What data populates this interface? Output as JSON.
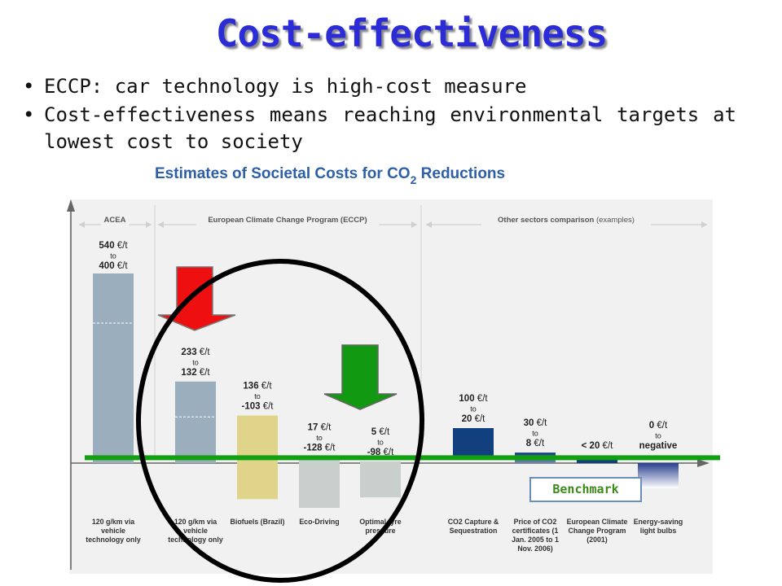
{
  "slide": {
    "title": "Cost-effectiveness",
    "bullets": [
      "ECCP: car technology is high-cost measure",
      "Cost-effectiveness means reaching environmental targets at lowest cost to society"
    ]
  },
  "colors": {
    "title": "#2b2bd8",
    "bar_acea": "#9aaebe",
    "bar_eccp_gray": "#c9cfcc",
    "bar_biofuels": "#e0d48a",
    "bar_other_blue": "#123f7d",
    "benchmark_line": "#10a010",
    "red_arrow": "#ee1010",
    "green_arrow": "#119911",
    "benchmark_label": "#3d8a1a"
  },
  "annotations": {
    "benchmark_label": "Benchmark"
  },
  "chart_data": {
    "type": "bar",
    "title": "Estimates of Societal Costs for CO2 Reductions",
    "unit": "€/t",
    "sections": [
      {
        "label": "ACEA",
        "note": ""
      },
      {
        "label": "European Climate Change Program (ECCP)",
        "note": ""
      },
      {
        "label": "Other sectors comparison",
        "note": "(examples)"
      }
    ],
    "categories": [
      "120 g/km via vehicle technology only",
      "120 g/km via vehicle technology only",
      "Biofuels (Brazil)",
      "Eco-Driving",
      "Optimal tyre pressure",
      "CO2 Capture & Sequestration",
      "Price of CO2 certificates (1 Jan. 2005 to 1 Nov. 2006)",
      "European Climate Change Program (2001)",
      "Energy-saving light bulbs"
    ],
    "bars": [
      {
        "range_label": [
          "540 €/t",
          "to",
          "400 €/t"
        ],
        "high": 540,
        "low": 400
      },
      {
        "range_label": [
          "233 €/t",
          "to",
          "132 €/t"
        ],
        "high": 233,
        "low": 132
      },
      {
        "range_label": [
          "136 €/t",
          "to",
          "-103 €/t"
        ],
        "high": 136,
        "low": -103
      },
      {
        "range_label": [
          "17 €/t",
          "to",
          "-128 €/t"
        ],
        "high": 17,
        "low": -128
      },
      {
        "range_label": [
          "5 €/t",
          "to",
          "-98 €/t"
        ],
        "high": 5,
        "low": -98
      },
      {
        "range_label": [
          "100 €/t",
          "to",
          "20 €/t"
        ],
        "high": 100,
        "low": 20
      },
      {
        "range_label": [
          "30 €/t",
          "to",
          "8 €/t"
        ],
        "high": 30,
        "low": 8
      },
      {
        "range_label": [
          "< 20 €/t"
        ],
        "high": 20,
        "low": 0
      },
      {
        "range_label": [
          "0 €/t",
          "to",
          "negative"
        ],
        "high": 0,
        "low": -40
      }
    ],
    "benchmark_value": 20,
    "grid": false
  }
}
